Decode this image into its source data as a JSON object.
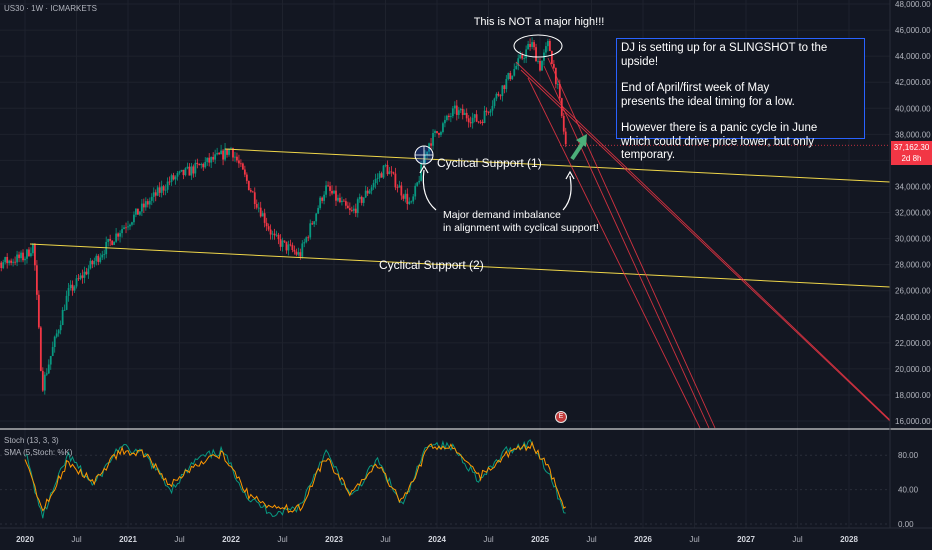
{
  "symbol": "US30 · 1W · ICMARKETS",
  "current_price": "37,162.30",
  "countdown": "2d 8h",
  "indicator": {
    "stoch_label": "Stoch (13, 3, 3)",
    "sma_label": "SMA (5,Stoch: %K)",
    "logo_letter": "E"
  },
  "annotations": {
    "major_high_text": "This is NOT a major high!!!",
    "support1_label": "Cyclical Support (1)",
    "support2_label": "Cyclical Support (2)",
    "demand_line1": "Major demand imbalance",
    "demand_line2": "in alignment with cyclical support!",
    "box_lines": [
      "DJ is setting up for a SLINGSHOT to the upside!",
      "End of April/first week of May",
      "presents the ideal timing for a low.",
      "However there is a panic cycle in June",
      "which could drive price lower, but only temporary."
    ]
  },
  "colors": {
    "background": "#131722",
    "up": "#089981",
    "down": "#f23645",
    "support": "#f0d74a",
    "projection": "#f23645",
    "stoch_k": "#089981",
    "stoch_d": "#ff9800",
    "box_border": "#2962ff",
    "arrow": "#4caf7a"
  },
  "chart_data": [
    {
      "type": "candlestick",
      "title": "US30 · 1W · ICMARKETS",
      "x_ticks": [
        "2020",
        "Jul",
        "2021",
        "Jul",
        "2022",
        "Jul",
        "2023",
        "Jul",
        "2024",
        "Jul",
        "2025",
        "Jul",
        "2026",
        "Jul",
        "2027",
        "Jul",
        "2028"
      ],
      "y_ticks": [
        "48,000.00",
        "46,000.00",
        "44,000.00",
        "42,000.00",
        "40,000.00",
        "38,000.00",
        "36,000.00",
        "34,000.00",
        "32,000.00",
        "30,000.00",
        "28,000.00",
        "26,000.00",
        "24,000.00",
        "22,000.00",
        "20,000.00",
        "18,000.00",
        "16,000.00"
      ],
      "ylim": [
        16000,
        48000
      ],
      "last_price": 37162.3,
      "key_points": [
        {
          "date": "2020-01",
          "close": 28600
        },
        {
          "date": "2020-02",
          "close": 29550
        },
        {
          "date": "2020-03",
          "close": 18600
        },
        {
          "date": "2020-06",
          "close": 25800
        },
        {
          "date": "2020-12",
          "close": 30600
        },
        {
          "date": "2021-06",
          "close": 34500
        },
        {
          "date": "2021-12",
          "close": 36400
        },
        {
          "date": "2022-01",
          "close": 36950
        },
        {
          "date": "2022-06",
          "close": 30000
        },
        {
          "date": "2022-09",
          "close": 28700
        },
        {
          "date": "2022-12",
          "close": 33900
        },
        {
          "date": "2023-03",
          "close": 31900
        },
        {
          "date": "2023-07",
          "close": 35500
        },
        {
          "date": "2023-10",
          "close": 32500
        },
        {
          "date": "2023-12",
          "close": 37300
        },
        {
          "date": "2024-03",
          "close": 39800
        },
        {
          "date": "2024-06",
          "close": 39000
        },
        {
          "date": "2024-09",
          "close": 42000
        },
        {
          "date": "2024-12",
          "close": 45000
        },
        {
          "date": "2025-01",
          "close": 43200
        },
        {
          "date": "2025-02",
          "close": 45000
        },
        {
          "date": "2025-03",
          "close": 41800
        },
        {
          "date": "2025-04",
          "close": 37162
        }
      ]
    },
    {
      "type": "line",
      "title": "Stoch (13, 3, 3)",
      "y_ticks": [
        "80.00",
        "40.00",
        "0.00"
      ],
      "ylim": [
        0,
        100
      ],
      "series": [
        {
          "name": "Stoch (13, 3, 3)",
          "x": [
            "2020-01",
            "2020-03",
            "2020-06",
            "2020-09",
            "2020-12",
            "2021-03",
            "2021-06",
            "2021-09",
            "2021-12",
            "2022-03",
            "2022-06",
            "2022-09",
            "2022-12",
            "2023-03",
            "2023-06",
            "2023-09",
            "2023-12",
            "2024-03",
            "2024-06",
            "2024-09",
            "2024-12",
            "2025-02",
            "2025-04"
          ],
          "values": [
            85,
            8,
            80,
            45,
            90,
            80,
            40,
            75,
            85,
            30,
            12,
            20,
            85,
            30,
            75,
            20,
            95,
            88,
            50,
            85,
            95,
            60,
            12
          ]
        },
        {
          "name": "SMA (5,Stoch: %K)",
          "x": [
            "2020-01",
            "2020-03",
            "2020-06",
            "2020-09",
            "2020-12",
            "2021-03",
            "2021-06",
            "2021-09",
            "2021-12",
            "2022-03",
            "2022-06",
            "2022-09",
            "2022-12",
            "2023-03",
            "2023-06",
            "2023-09",
            "2023-12",
            "2024-03",
            "2024-06",
            "2024-09",
            "2024-12",
            "2025-02",
            "2025-04"
          ],
          "values": [
            80,
            15,
            72,
            50,
            85,
            82,
            45,
            70,
            82,
            35,
            18,
            18,
            78,
            35,
            70,
            25,
            90,
            88,
            55,
            80,
            92,
            65,
            15
          ]
        }
      ]
    }
  ]
}
